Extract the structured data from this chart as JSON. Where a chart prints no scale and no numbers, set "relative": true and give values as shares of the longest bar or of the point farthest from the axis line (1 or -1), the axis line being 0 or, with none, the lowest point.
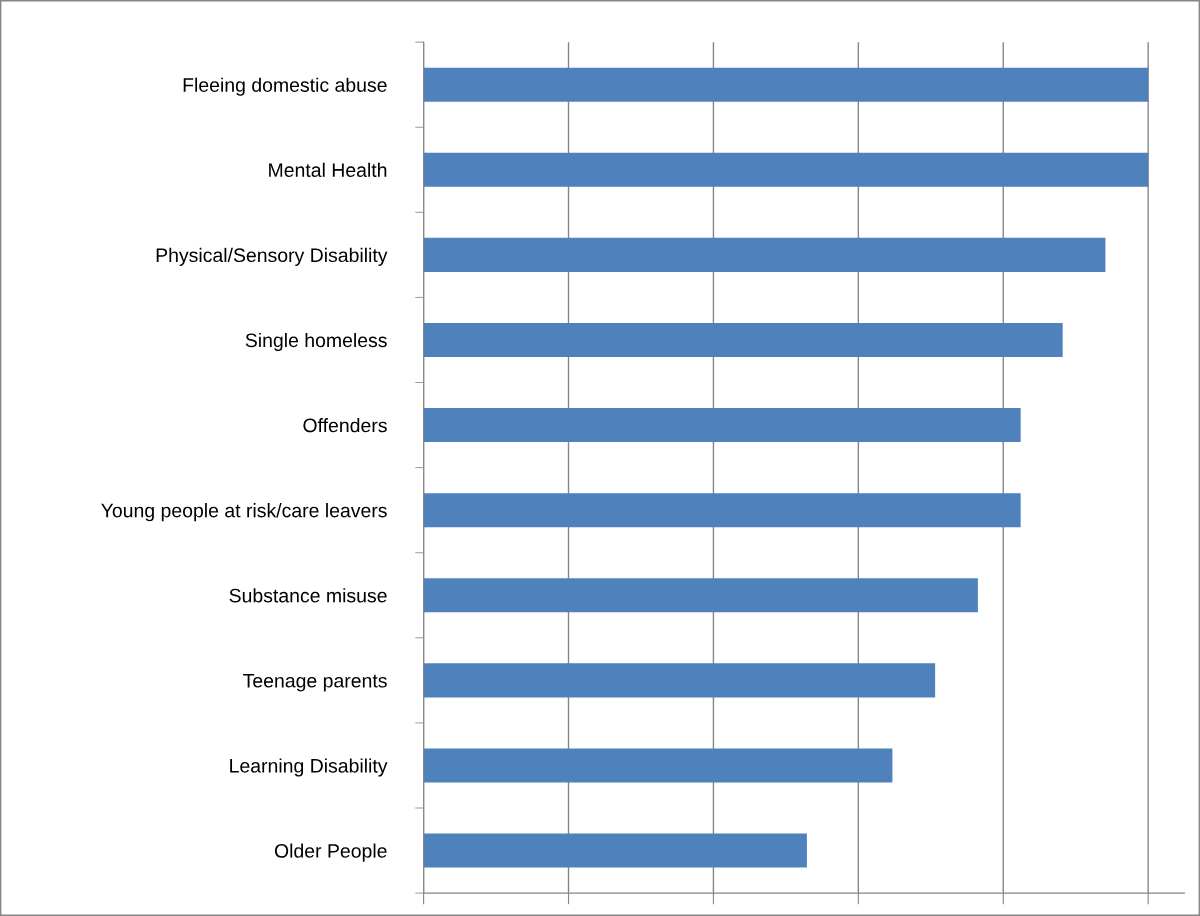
{
  "chart_data": {
    "type": "bar",
    "orientation": "horizontal",
    "relative": true,
    "grid": "x",
    "legend": false,
    "categories": [
      "Fleeing domestic abuse",
      "Mental Health",
      "Physical/Sensory Disability",
      "Single homeless",
      "Offenders",
      "Young people at risk/care leavers",
      "Substance misuse",
      "Teenage parents",
      "Learning Disability",
      "Older People"
    ],
    "values": [
      1,
      1,
      0.941,
      0.882,
      0.824,
      0.824,
      0.765,
      0.706,
      0.647,
      0.529
    ],
    "color": "#4f81bd"
  }
}
